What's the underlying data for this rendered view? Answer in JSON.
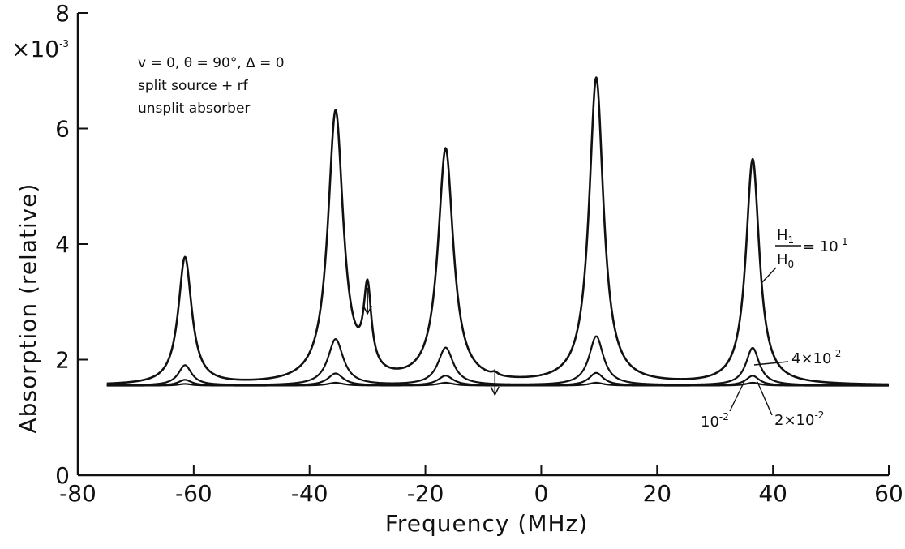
{
  "chart_data": {
    "type": "line",
    "xlabel": "Frequency (MHz)",
    "ylabel": "Absorption (relative)",
    "y_multiplier": "×10⁻³",
    "xlim": [
      -80,
      60
    ],
    "ylim": [
      0,
      8
    ],
    "x_ticks": [
      -80,
      -60,
      -40,
      -20,
      0,
      20,
      40,
      60
    ],
    "y_ticks": [
      0,
      2,
      4,
      6,
      8
    ],
    "x_tick_labels": [
      "-80",
      "-60",
      "-40",
      "-20",
      "0",
      "20",
      "40",
      "60"
    ],
    "y_tick_labels": [
      "0",
      "2",
      "4",
      "6",
      "8"
    ],
    "x_range_plotted": [
      -75,
      60
    ],
    "baseline": 1.55,
    "annotations": [
      "v = 0, θ = 90°, Δ = 0",
      "split source + rf",
      "unsplit absorber"
    ],
    "arrow_markers_x": [
      -30,
      -8
    ],
    "series": [
      {
        "name": "H1/H0 = 10⁻¹",
        "peaks": [
          {
            "x": -61.5,
            "height": 3.75,
            "width": 1.4
          },
          {
            "x": -35.5,
            "height": 6.25,
            "width": 1.6
          },
          {
            "x": -30,
            "height": 2.95,
            "width": 0.8
          },
          {
            "x": -16.5,
            "height": 5.6,
            "width": 1.6
          },
          {
            "x": -8,
            "height": 1.6,
            "width": 0.6
          },
          {
            "x": 9.5,
            "height": 6.85,
            "width": 1.5
          },
          {
            "x": 36.5,
            "height": 5.45,
            "width": 1.4
          }
        ]
      },
      {
        "name": "4×10⁻²",
        "peaks": [
          {
            "x": -61.5,
            "height": 1.9,
            "width": 1.4
          },
          {
            "x": -35.5,
            "height": 2.35,
            "width": 1.6
          },
          {
            "x": -16.5,
            "height": 2.2,
            "width": 1.6
          },
          {
            "x": 9.5,
            "height": 2.4,
            "width": 1.5
          },
          {
            "x": 36.5,
            "height": 2.2,
            "width": 1.4
          }
        ]
      },
      {
        "name": "2×10⁻²",
        "peaks": [
          {
            "x": -61.5,
            "height": 1.65,
            "width": 1.4
          },
          {
            "x": -35.5,
            "height": 1.76,
            "width": 1.6
          },
          {
            "x": -16.5,
            "height": 1.72,
            "width": 1.6
          },
          {
            "x": 9.5,
            "height": 1.77,
            "width": 1.5
          },
          {
            "x": 36.5,
            "height": 1.72,
            "width": 1.4
          }
        ]
      },
      {
        "name": "10⁻²",
        "peaks": [
          {
            "x": -61.5,
            "height": 1.58,
            "width": 1.4
          },
          {
            "x": -35.5,
            "height": 1.6,
            "width": 1.6
          },
          {
            "x": -16.5,
            "height": 1.6,
            "width": 1.6
          },
          {
            "x": 9.5,
            "height": 1.6,
            "width": 1.5
          },
          {
            "x": 36.5,
            "height": 1.6,
            "width": 1.4
          }
        ]
      }
    ],
    "labels": {
      "h1": "H",
      "h1_sub": "1",
      "h0": "H",
      "h0_sub": "0",
      "h_eq": "= 10",
      "h_exp": "-1",
      "l4_base": "4×10",
      "l4_exp": "-2",
      "l1_base": "10",
      "l1_exp": "-2",
      "l2_base": "2×10",
      "l2_exp": "-2",
      "ymult_base": "×10",
      "ymult_exp": "-3"
    },
    "line_color": "#111111",
    "background": "#ffffff"
  }
}
